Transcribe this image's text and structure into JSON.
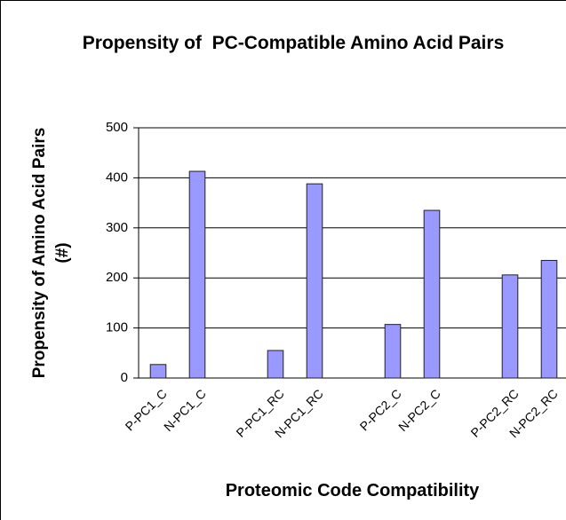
{
  "chart_data": {
    "type": "bar",
    "title": "Propensity of  PC-Compatible Amino Acid Pairs",
    "x_label": "Proteomic Code Compatibility",
    "y_label": "Propensity of Amino Acid Pairs (#)",
    "categories": [
      "P-PC1_C",
      "N-PC1_C",
      null,
      "P-PC1_RC",
      "N-PC1_RC",
      null,
      "P-PC2_C",
      "N-PC2_C",
      null,
      "P-PC2_RC",
      "N-PC2_RC"
    ],
    "values": [
      27,
      413,
      null,
      55,
      388,
      null,
      107,
      335,
      null,
      206,
      235
    ],
    "color": "#9999ff",
    "ylim": [
      0,
      500
    ],
    "yticks": [
      0,
      100,
      200,
      300,
      400,
      500
    ],
    "grid": true
  }
}
